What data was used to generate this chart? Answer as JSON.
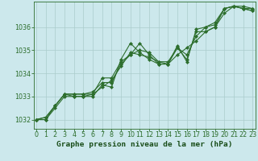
{
  "xlabel": "Graphe pression niveau de la mer (hPa)",
  "background_color": "#cce8ec",
  "grid_color": "#aacccc",
  "line_color": "#2d6e2d",
  "x_values": [
    0,
    1,
    2,
    3,
    4,
    5,
    6,
    7,
    8,
    9,
    10,
    11,
    12,
    13,
    14,
    15,
    16,
    17,
    18,
    19,
    20,
    21,
    22,
    23
  ],
  "series": [
    [
      1032.0,
      1032.0,
      1032.6,
      1033.1,
      1033.1,
      1033.1,
      1033.1,
      1033.4,
      1033.7,
      1034.3,
      1034.9,
      1034.8,
      1034.7,
      1034.5,
      1034.4,
      1034.8,
      1035.1,
      1035.4,
      1035.8,
      1036.0,
      1036.6,
      1036.9,
      1036.8,
      1036.8
    ],
    [
      1032.0,
      1032.1,
      1032.6,
      1033.1,
      1033.0,
      1033.0,
      1033.1,
      1033.8,
      1033.8,
      1034.5,
      1034.8,
      1035.3,
      1034.8,
      1034.4,
      1034.4,
      1035.1,
      1034.6,
      1035.8,
      1035.8,
      1036.0,
      1036.8,
      1036.9,
      1036.8,
      1036.7
    ],
    [
      1032.0,
      1032.1,
      1032.6,
      1033.1,
      1033.1,
      1033.1,
      1033.2,
      1033.6,
      1033.6,
      1034.4,
      1034.8,
      1035.0,
      1034.9,
      1034.5,
      1034.5,
      1035.1,
      1034.8,
      1035.6,
      1036.0,
      1036.1,
      1036.8,
      1036.9,
      1036.9,
      1036.8
    ],
    [
      1032.0,
      1032.0,
      1032.5,
      1033.0,
      1033.0,
      1033.0,
      1033.0,
      1033.5,
      1033.4,
      1034.6,
      1035.3,
      1034.9,
      1034.6,
      1034.4,
      1034.4,
      1035.2,
      1034.5,
      1035.9,
      1036.0,
      1036.2,
      1036.8,
      1036.9,
      1036.8,
      1036.7
    ]
  ],
  "ylim": [
    1031.6,
    1037.1
  ],
  "yticks": [
    1032,
    1033,
    1034,
    1035,
    1036
  ],
  "xlim": [
    -0.3,
    23.3
  ],
  "xticks": [
    0,
    1,
    2,
    3,
    4,
    5,
    6,
    7,
    8,
    9,
    10,
    11,
    12,
    13,
    14,
    15,
    16,
    17,
    18,
    19,
    20,
    21,
    22,
    23
  ],
  "axis_color": "#2d6e2d",
  "tick_color": "#2d6e2d",
  "label_color": "#1a4e1a",
  "label_fontsize": 6.8,
  "tick_fontsize": 5.8,
  "marker": "D",
  "marker_size": 2.0,
  "line_width": 0.8
}
